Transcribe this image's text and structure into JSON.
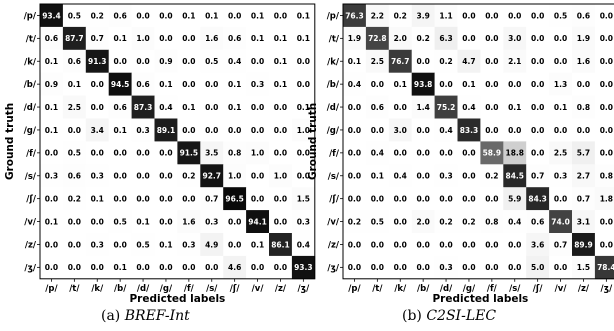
{
  "chart_data": [
    {
      "type": "heatmap",
      "caption_prefix": "(a) ",
      "caption_name": "BREF-Int",
      "xlabel": "Predicted labels",
      "ylabel": "Ground truth",
      "labels": [
        "/p/",
        "/t/",
        "/k/",
        "/b/",
        "/d/",
        "/g/",
        "/f/",
        "/s/",
        "/ʃ/",
        "/v/",
        "/z/",
        "/ʒ/"
      ],
      "values": [
        [
          93.4,
          0.5,
          0.2,
          0.6,
          0.0,
          0.0,
          0.1,
          0.1,
          0.0,
          0.1,
          0.0,
          0.1
        ],
        [
          0.6,
          87.7,
          0.7,
          0.1,
          1.0,
          0.0,
          0.0,
          1.6,
          0.6,
          0.1,
          0.1,
          0.1
        ],
        [
          0.1,
          0.6,
          91.3,
          0.0,
          0.0,
          0.9,
          0.0,
          0.5,
          0.4,
          0.0,
          0.1,
          0.0
        ],
        [
          0.9,
          0.1,
          0.0,
          94.5,
          0.6,
          0.1,
          0.0,
          0.0,
          0.1,
          0.3,
          0.1,
          0.0
        ],
        [
          0.1,
          2.5,
          0.0,
          0.6,
          87.3,
          0.4,
          0.1,
          0.0,
          0.1,
          0.0,
          0.0,
          0.1
        ],
        [
          0.1,
          0.0,
          3.4,
          0.1,
          0.3,
          89.1,
          0.0,
          0.0,
          0.0,
          0.0,
          0.0,
          1.0
        ],
        [
          0.0,
          0.5,
          0.0,
          0.0,
          0.0,
          0.0,
          91.5,
          3.5,
          0.8,
          1.0,
          0.0,
          0.0
        ],
        [
          0.3,
          0.6,
          0.3,
          0.0,
          0.0,
          0.0,
          0.2,
          92.7,
          1.0,
          0.0,
          1.0,
          0.0
        ],
        [
          0.0,
          0.2,
          0.1,
          0.0,
          0.0,
          0.0,
          0.0,
          0.7,
          96.5,
          0.0,
          0.0,
          1.5
        ],
        [
          0.1,
          0.0,
          0.0,
          0.5,
          0.1,
          0.0,
          1.6,
          0.3,
          0.0,
          94.1,
          0.0,
          0.3
        ],
        [
          0.0,
          0.0,
          0.3,
          0.0,
          0.5,
          0.1,
          0.3,
          4.9,
          0.0,
          0.1,
          86.1,
          0.4
        ],
        [
          0.0,
          0.0,
          0.0,
          0.1,
          0.0,
          0.0,
          0.0,
          0.0,
          4.6,
          0.0,
          0.0,
          93.3
        ]
      ]
    },
    {
      "type": "heatmap",
      "caption_prefix": "(b) ",
      "caption_name": "C2SI-LEC",
      "xlabel": "Predicted labels",
      "ylabel": "Ground truth",
      "labels": [
        "/p/",
        "/t/",
        "/k/",
        "/b/",
        "/d/",
        "/g/",
        "/f/",
        "/s/",
        "/ʃ/",
        "/v/",
        "/z/",
        "/ʒ/"
      ],
      "values": [
        [
          76.3,
          2.2,
          0.2,
          3.9,
          1.1,
          0.0,
          0.0,
          0.0,
          0.0,
          0.5,
          0.6,
          0.0
        ],
        [
          1.9,
          72.8,
          2.0,
          0.2,
          6.3,
          0.0,
          0.0,
          3.0,
          0.0,
          0.0,
          1.9,
          0.0
        ],
        [
          0.1,
          2.5,
          76.7,
          0.0,
          0.2,
          4.7,
          0.0,
          2.1,
          0.0,
          0.0,
          1.6,
          0.0
        ],
        [
          0.4,
          0.0,
          0.1,
          93.8,
          0.0,
          0.1,
          0.0,
          0.0,
          0.0,
          1.3,
          0.0,
          0.0
        ],
        [
          0.0,
          0.6,
          0.0,
          1.4,
          75.2,
          0.4,
          0.0,
          0.1,
          0.0,
          0.1,
          0.8,
          0.0
        ],
        [
          0.0,
          0.0,
          3.0,
          0.0,
          0.4,
          83.3,
          0.0,
          0.0,
          0.0,
          0.0,
          0.0,
          0.0
        ],
        [
          0.0,
          0.4,
          0.0,
          0.0,
          0.0,
          0.0,
          58.9,
          18.8,
          0.0,
          2.5,
          5.7,
          0.0
        ],
        [
          0.0,
          0.1,
          0.4,
          0.0,
          0.3,
          0.0,
          0.2,
          84.5,
          0.7,
          0.3,
          2.7,
          0.8
        ],
        [
          0.0,
          0.0,
          0.0,
          0.0,
          0.0,
          0.0,
          0.0,
          5.9,
          84.3,
          0.0,
          0.7,
          1.8
        ],
        [
          0.2,
          0.5,
          0.0,
          2.0,
          0.2,
          0.2,
          0.8,
          0.4,
          0.6,
          74.0,
          3.1,
          0.0
        ],
        [
          0.0,
          0.0,
          0.0,
          0.0,
          0.0,
          0.0,
          0.0,
          0.0,
          3.6,
          0.7,
          89.9,
          0.0
        ],
        [
          0.0,
          0.0,
          0.0,
          0.0,
          0.3,
          0.0,
          0.0,
          0.0,
          5.0,
          0.0,
          1.5,
          78.4
        ]
      ]
    }
  ]
}
